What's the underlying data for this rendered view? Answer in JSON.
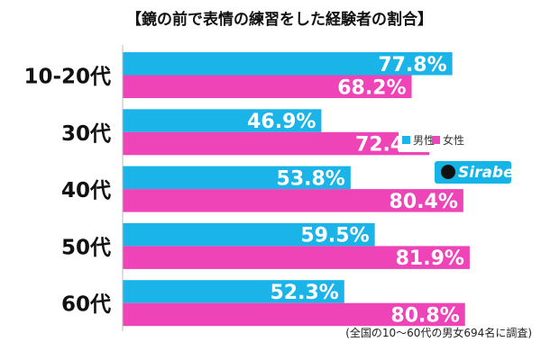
{
  "chart_data": {
    "type": "bar",
    "orientation": "horizontal",
    "title": "【鏡の前で表情の練習をした経験者の割合】",
    "categories": [
      "10-20代",
      "30代",
      "40代",
      "50代",
      "60代"
    ],
    "series": [
      {
        "name": "男性",
        "color": "#1ab4e8",
        "values": [
          77.8,
          46.9,
          53.8,
          59.5,
          52.3
        ]
      },
      {
        "name": "女性",
        "color": "#ee44b8",
        "values": [
          68.2,
          72.4,
          80.4,
          81.9,
          80.8
        ]
      }
    ],
    "value_suffix": "%",
    "xlim": [
      0,
      100
    ],
    "legend_position": "right",
    "note": "(全国の10〜60代の男女694名に調査)"
  },
  "brand": {
    "name": "Sirabee",
    "bg": "#14b4e6"
  }
}
